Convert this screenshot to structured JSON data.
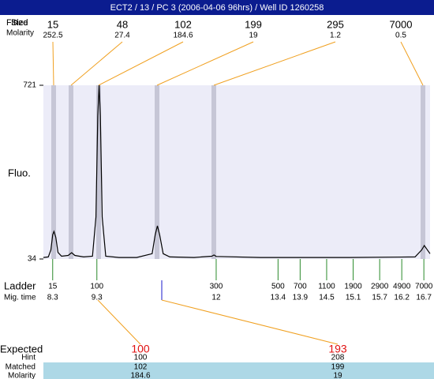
{
  "title": "ECT2 / 13 / PC 3 (2006-04-06 96hrs) / Well ID 1260258",
  "peak_table": {
    "labels": [
      "Fitted",
      "Size",
      "Molarity"
    ],
    "sizes": [
      15,
      48,
      102,
      199,
      295,
      7000
    ],
    "molarity": [
      252.5,
      27.4,
      184.6,
      19,
      1.2,
      0.5
    ]
  },
  "chart_data": {
    "type": "line",
    "ylabel": "Fluo.",
    "color": "#000000",
    "x": [
      8.09,
      8.2,
      8.26,
      8.3,
      8.33,
      8.37,
      8.42,
      8.5,
      8.65,
      8.73,
      8.8,
      9.0,
      9.2,
      9.28,
      9.32,
      9.35,
      9.38,
      9.42,
      9.5,
      9.8,
      10.2,
      10.55,
      10.62,
      10.67,
      10.72,
      10.8,
      10.95,
      11.5,
      11.9,
      11.95,
      12.0,
      13.0,
      15.0,
      16.5,
      16.65,
      16.71,
      16.77,
      16.84
    ],
    "values": [
      40,
      42,
      70,
      130,
      143,
      120,
      60,
      45,
      48,
      59,
      48,
      42,
      45,
      200,
      600,
      721,
      600,
      200,
      45,
      40,
      40,
      55,
      130,
      165,
      130,
      55,
      42,
      40,
      45,
      50,
      44,
      40,
      40,
      42,
      70,
      87,
      72,
      55
    ],
    "xlim": [
      8.09,
      16.84
    ],
    "ylim": [
      34,
      721
    ],
    "yticks": [
      34,
      721
    ]
  },
  "ladder": {
    "labels": [
      "Ladder",
      "Mig. time"
    ],
    "sizes": [
      15,
      100,
      300,
      500,
      700,
      1100,
      1900,
      2900,
      4900,
      7000
    ],
    "mig_times": [
      8.3,
      9.3,
      12,
      13.4,
      13.9,
      14.5,
      15.1,
      15.7,
      16.2,
      16.7
    ]
  },
  "expected": {
    "labels": [
      "Expected",
      "Hint",
      "Matched",
      "Molarity"
    ],
    "expected": [
      100,
      193
    ],
    "hint": [
      100,
      208
    ],
    "matched": [
      102,
      199
    ],
    "molarity": [
      184.6,
      19
    ]
  }
}
